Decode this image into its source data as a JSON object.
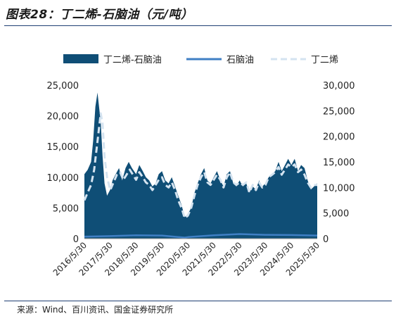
{
  "title": "图表28：丁二烯-石脑油（元/吨）",
  "source": "来源：Wind、百川资讯、国金证券研究所",
  "chart_data": {
    "type": "bar",
    "series": [
      {
        "name": "丁二烯-石脑油",
        "kind": "area",
        "axis": "left",
        "color": "#0f4e76",
        "x": [
          "2016-05-30",
          "2016-07-15",
          "2016-09-01",
          "2016-10-01",
          "2016-11-01",
          "2016-12-01",
          "2017-01-15",
          "2017-02-10",
          "2017-03-10",
          "2017-04-15",
          "2017-05-30",
          "2017-07-01",
          "2017-08-15",
          "2017-10-01",
          "2017-11-15",
          "2018-01-01",
          "2018-02-15",
          "2018-04-01",
          "2018-05-30",
          "2018-07-15",
          "2018-09-01",
          "2018-10-15",
          "2018-12-01",
          "2019-01-15",
          "2019-03-01",
          "2019-04-15",
          "2019-05-30",
          "2019-07-15",
          "2019-09-01",
          "2019-10-15",
          "2019-12-01",
          "2020-01-15",
          "2020-03-01",
          "2020-04-15",
          "2020-05-30",
          "2020-07-15",
          "2020-09-01",
          "2020-10-15",
          "2020-12-01",
          "2021-01-15",
          "2021-03-01",
          "2021-04-15",
          "2021-05-30",
          "2021-07-15",
          "2021-09-01",
          "2021-10-15",
          "2021-12-01",
          "2022-01-15",
          "2022-03-01",
          "2022-04-15",
          "2022-05-30",
          "2022-07-15",
          "2022-09-01",
          "2022-10-15",
          "2022-12-01",
          "2023-01-15",
          "2023-03-01",
          "2023-04-15",
          "2023-05-30",
          "2023-07-15",
          "2023-09-01",
          "2023-10-15",
          "2023-12-01",
          "2024-01-15",
          "2024-03-01",
          "2024-04-15",
          "2024-05-30",
          "2024-07-15",
          "2024-09-01",
          "2024-10-15",
          "2024-12-01",
          "2025-01-15",
          "2025-03-01",
          "2025-04-15",
          "2025-05-30"
        ],
        "values": [
          10500,
          11200,
          12500,
          16000,
          21500,
          23800,
          19000,
          13500,
          9000,
          7000,
          8000,
          9500,
          10500,
          11500,
          9500,
          11500,
          12500,
          11500,
          10500,
          12000,
          11000,
          10000,
          9500,
          8500,
          9000,
          10500,
          11000,
          9500,
          9000,
          10000,
          8500,
          7000,
          5500,
          3500,
          4000,
          5000,
          7500,
          9000,
          10500,
          11500,
          9500,
          9000,
          10000,
          11000,
          9500,
          8500,
          10500,
          11000,
          9000,
          8500,
          9500,
          8500,
          9000,
          7500,
          8500,
          8000,
          9500,
          8500,
          9000,
          10000,
          10500,
          11000,
          12500,
          11000,
          12000,
          13000,
          12000,
          13000,
          11000,
          12000,
          11500,
          9500,
          8000,
          8500,
          9000
        ]
      },
      {
        "name": "石脑油",
        "kind": "line",
        "axis": "right",
        "color": "#3f7fc4",
        "x": [
          "2016-05-30",
          "2017-05-30",
          "2018-05-30",
          "2019-05-30",
          "2020-04-15",
          "2020-05-30",
          "2021-05-30",
          "2022-05-30",
          "2023-05-30",
          "2024-05-30",
          "2025-05-30"
        ],
        "values": [
          400,
          500,
          650,
          600,
          200,
          300,
          650,
          900,
          750,
          700,
          600
        ]
      },
      {
        "name": "丁二烯",
        "kind": "dashed-line",
        "axis": "right",
        "color": "#d4e3f0",
        "x": [
          "2016-05-30",
          "2016-07-15",
          "2016-09-01",
          "2016-10-15",
          "2016-12-01",
          "2017-01-15",
          "2017-02-10",
          "2017-03-10",
          "2017-04-15",
          "2017-05-30",
          "2017-07-15",
          "2017-09-01",
          "2017-10-15",
          "2017-12-01",
          "2018-01-15",
          "2018-03-01",
          "2018-04-15",
          "2018-05-30",
          "2018-07-15",
          "2018-09-01",
          "2018-10-15",
          "2018-12-01",
          "2019-01-15",
          "2019-03-01",
          "2019-04-15",
          "2019-05-30",
          "2019-07-15",
          "2019-09-01",
          "2019-10-15",
          "2019-12-01",
          "2020-01-15",
          "2020-03-01",
          "2020-04-15",
          "2020-05-30",
          "2020-07-15",
          "2020-09-01",
          "2020-10-15",
          "2020-12-01",
          "2021-01-15",
          "2021-03-01",
          "2021-04-15",
          "2021-05-30",
          "2021-07-15",
          "2021-09-01",
          "2021-10-15",
          "2021-12-01",
          "2022-01-15",
          "2022-03-01",
          "2022-04-15",
          "2022-05-30",
          "2022-07-15",
          "2022-09-01",
          "2022-10-15",
          "2022-12-01",
          "2023-01-15",
          "2023-03-01",
          "2023-04-15",
          "2023-05-30",
          "2023-07-15",
          "2023-09-01",
          "2023-10-15",
          "2023-12-01",
          "2024-01-15",
          "2024-03-01",
          "2024-04-15",
          "2024-05-30",
          "2024-07-15",
          "2024-09-01",
          "2024-10-15",
          "2024-12-01",
          "2025-01-15",
          "2025-03-01",
          "2025-04-15",
          "2025-05-30"
        ],
        "values": [
          7500,
          9000,
          10500,
          13500,
          19000,
          24500,
          22500,
          16000,
          12000,
          9500,
          11000,
          12500,
          13000,
          11500,
          12500,
          13500,
          12500,
          11500,
          13000,
          12000,
          11000,
          10500,
          9500,
          10500,
          11500,
          12000,
          10500,
          10000,
          11000,
          9500,
          7500,
          6000,
          4000,
          4500,
          6000,
          8500,
          10500,
          12000,
          13000,
          11000,
          10500,
          11500,
          12500,
          11500,
          10000,
          12000,
          13000,
          11000,
          10500,
          11000,
          10500,
          11000,
          9000,
          10500,
          9500,
          11000,
          10000,
          10500,
          12000,
          12500,
          13000,
          14000,
          12500,
          13500,
          14500,
          14000,
          14500,
          13000,
          13500,
          12500,
          11000,
          10000,
          10500,
          10500
        ]
      }
    ],
    "x_ticks": [
      "2016/5/30",
      "2017/5/30",
      "2018/5/30",
      "2019/5/30",
      "2020/5/30",
      "2021/5/30",
      "2022/5/30",
      "2023/5/30",
      "2024/5/30",
      "2025/5/30"
    ],
    "x_range": [
      "2016-05-30",
      "2025-05-30"
    ],
    "y_left_ticks": [
      "0",
      "5,000",
      "10,000",
      "15,000",
      "20,000",
      "25,000"
    ],
    "y_left_range": [
      0,
      25000
    ],
    "y_right_ticks": [
      "0",
      "5,000",
      "10,000",
      "15,000",
      "20,000",
      "25,000",
      "30,000"
    ],
    "y_right_range": [
      0,
      30000
    ],
    "legend": [
      "丁二烯-石脑油",
      "石脑油",
      "丁二烯"
    ],
    "legend_position": "top",
    "grid": false
  }
}
